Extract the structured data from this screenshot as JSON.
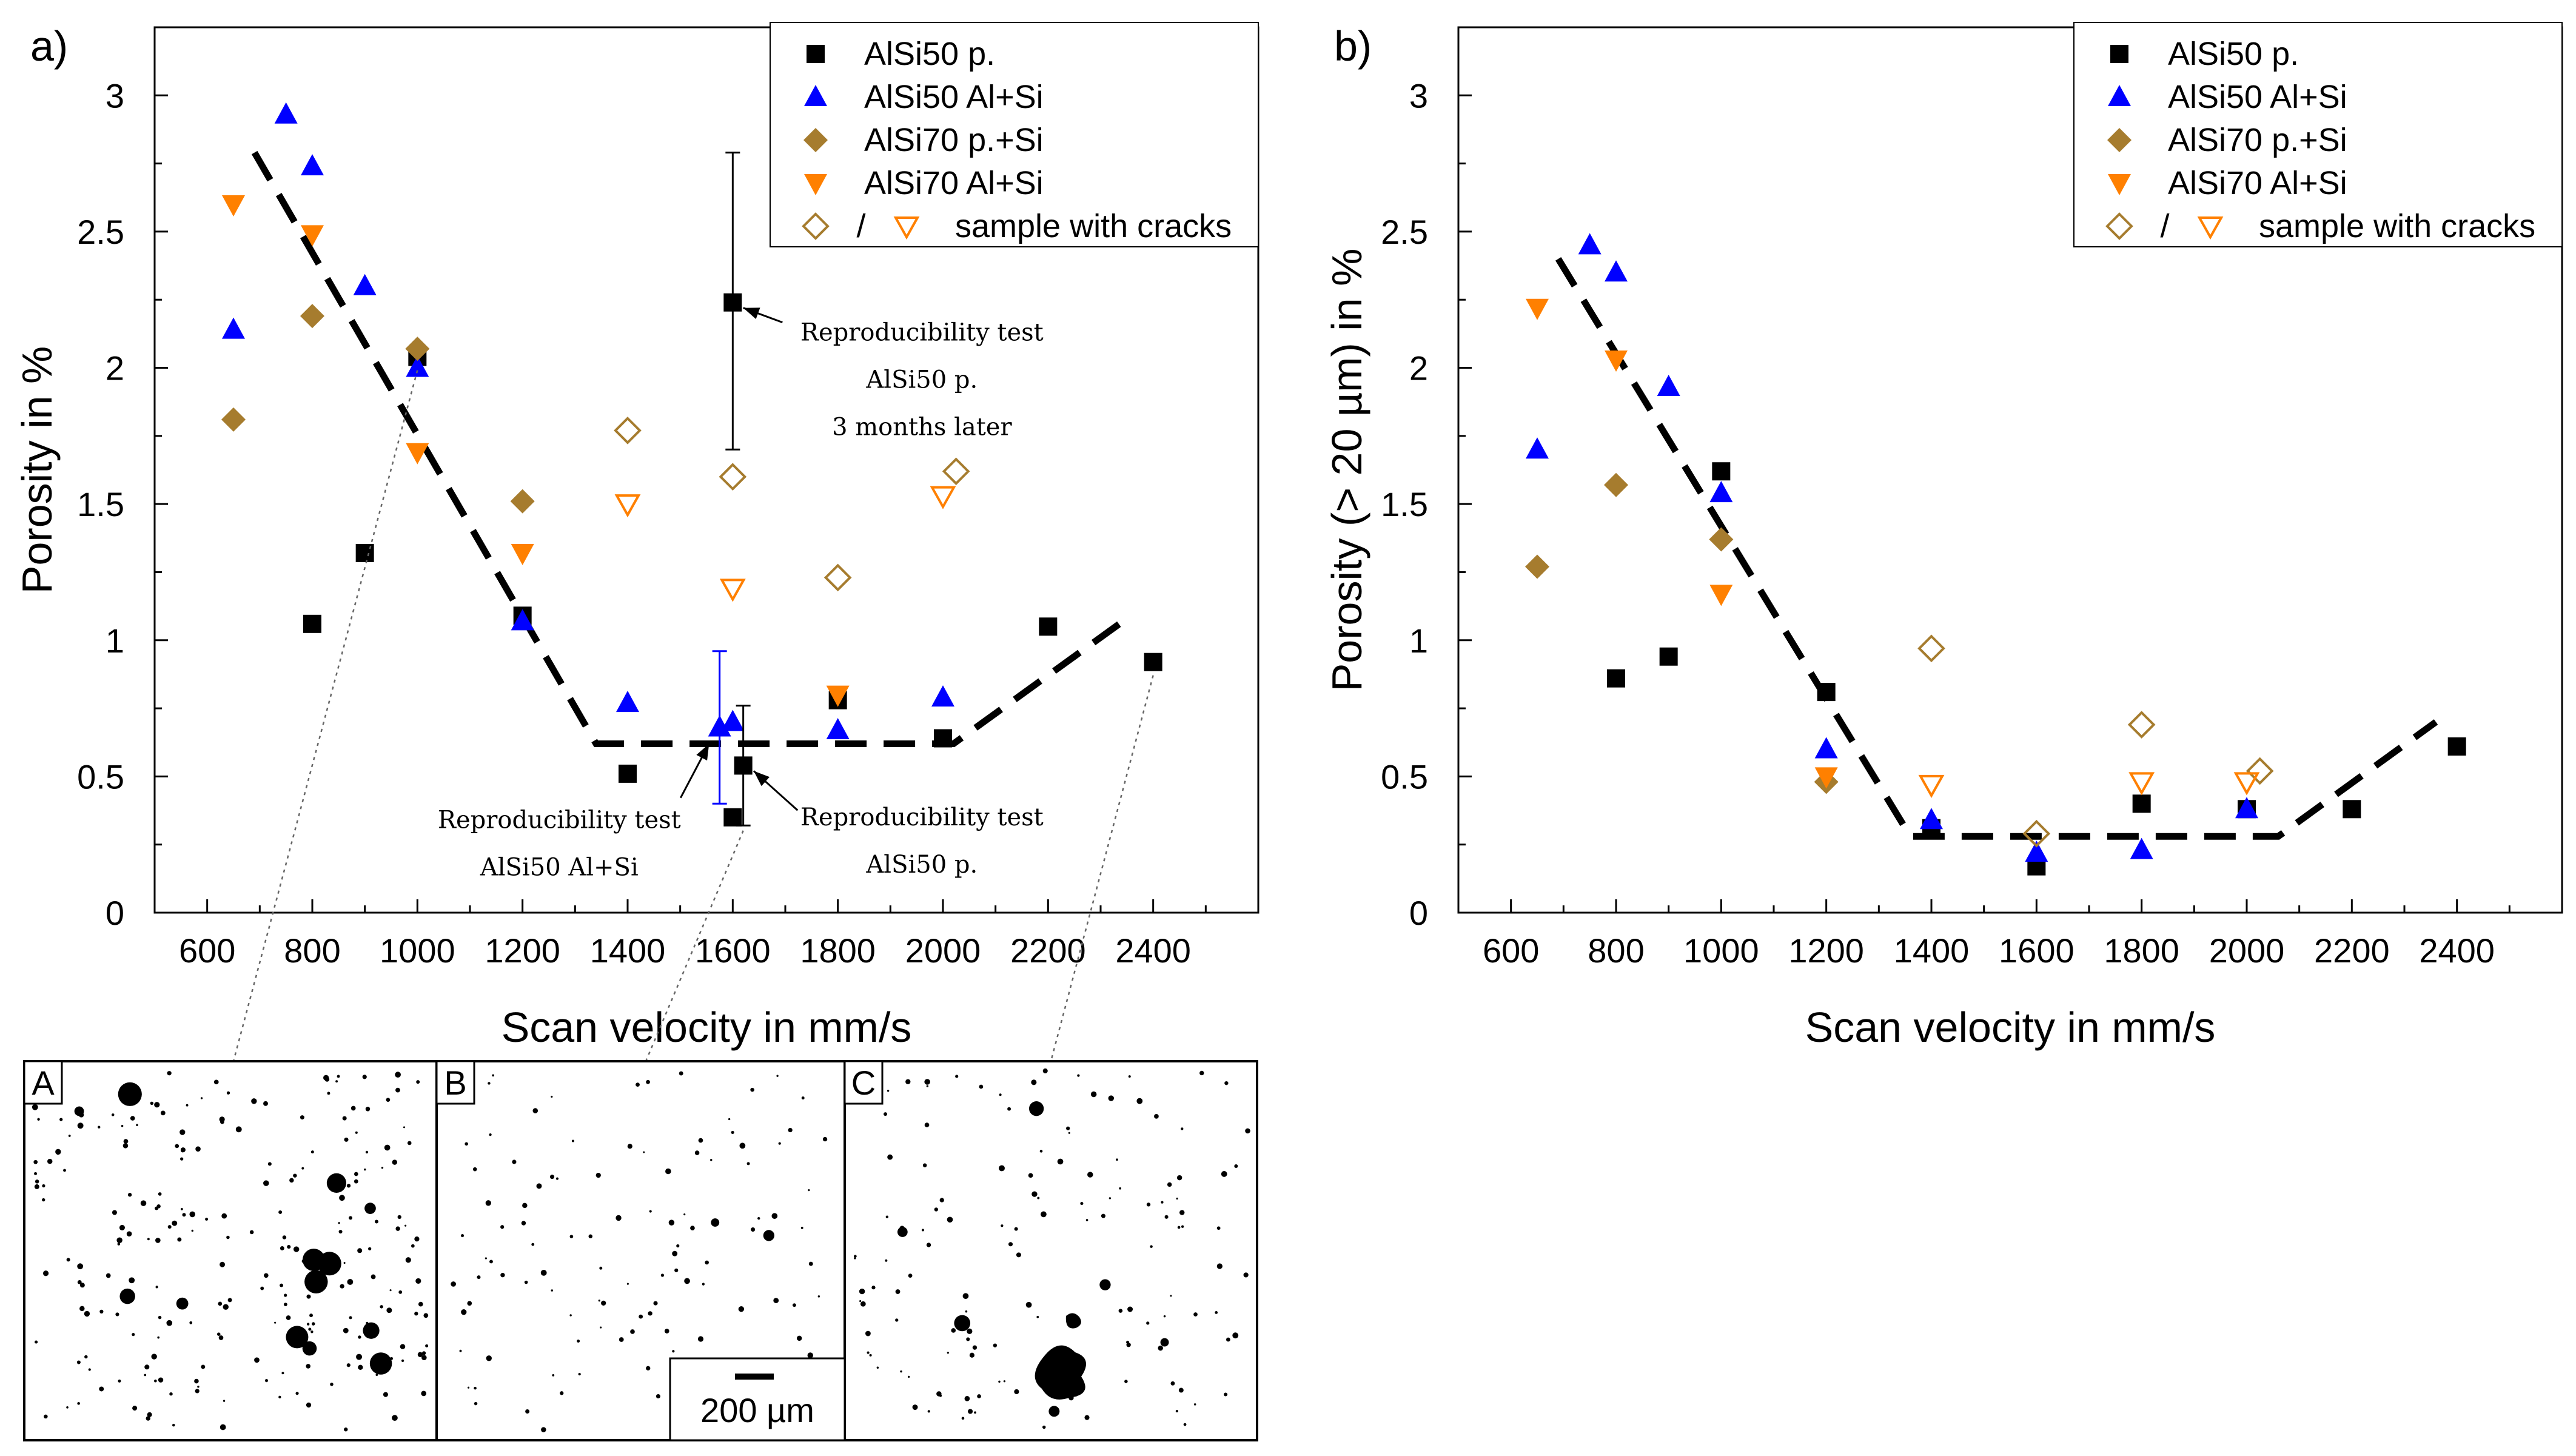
{
  "colors": {
    "p": "#000000",
    "alsi50": "#0000ff",
    "alsi70ps": "#a67c2e",
    "alsi70al": "#ff8000"
  },
  "legend": [
    {
      "key": "p",
      "label": "AlSi50 p."
    },
    {
      "key": "alsi50",
      "label": "AlSi50 Al+Si"
    },
    {
      "key": "alsi70ps",
      "label": "AlSi70 p.+Si"
    },
    {
      "key": "alsi70al",
      "label": "AlSi70 Al+Si"
    },
    {
      "key": "cracks",
      "label": "sample with cracks",
      "separator": "/"
    }
  ],
  "chart_data": [
    {
      "panel": "a)",
      "type": "scatter",
      "xlabel": "Scan velocity in mm/s",
      "ylabel": "Porosity in %",
      "xlim": [
        500,
        2600
      ],
      "ylim": [
        0,
        3.25
      ],
      "xticks": [
        600,
        800,
        1000,
        1200,
        1400,
        1600,
        1800,
        2000,
        2200,
        2400
      ],
      "yticks": [
        0,
        0.5,
        1,
        1.5,
        2,
        2.5,
        3
      ],
      "series": [
        {
          "name": "AlSi50 p.",
          "key": "p",
          "marker": "square",
          "points": [
            [
              800,
              1.06
            ],
            [
              900,
              1.32
            ],
            [
              1000,
              2.04
            ],
            [
              1200,
              1.09
            ],
            [
              1400,
              0.51
            ],
            [
              1600,
              0.35
            ],
            [
              1620,
              0.54
            ],
            [
              1800,
              0.78
            ],
            [
              2000,
              0.64
            ],
            [
              2200,
              1.05
            ],
            [
              2400,
              0.92
            ],
            [
              1600,
              2.24
            ]
          ]
        },
        {
          "name": "AlSi50 Al+Si",
          "key": "alsi50",
          "marker": "triangle-up",
          "points": [
            [
              650,
              2.14
            ],
            [
              750,
              2.93
            ],
            [
              800,
              2.74
            ],
            [
              900,
              2.3
            ],
            [
              1000,
              2.0
            ],
            [
              1200,
              1.07
            ],
            [
              1400,
              0.77
            ],
            [
              1575,
              0.68
            ],
            [
              1600,
              0.7
            ],
            [
              1800,
              0.67
            ],
            [
              2000,
              0.79
            ]
          ]
        },
        {
          "name": "AlSi70 p.+Si",
          "key": "alsi70ps",
          "marker": "diamond",
          "points": [
            [
              650,
              1.81
            ],
            [
              800,
              2.19
            ],
            [
              1000,
              2.07
            ],
            [
              1200,
              1.51
            ]
          ]
        },
        {
          "name": "AlSi70 Al+Si",
          "key": "alsi70al",
          "marker": "triangle-down",
          "points": [
            [
              650,
              2.6
            ],
            [
              800,
              2.49
            ],
            [
              1000,
              1.69
            ],
            [
              1200,
              1.32
            ],
            [
              1800,
              0.8
            ]
          ]
        },
        {
          "name": "AlSi70 p.+Si with cracks",
          "key": "alsi70ps",
          "marker": "diamond-open",
          "points": [
            [
              1400,
              1.77
            ],
            [
              1600,
              1.6
            ],
            [
              1800,
              1.23
            ],
            [
              2025,
              1.62
            ]
          ]
        },
        {
          "name": "AlSi70 Al+Si with cracks",
          "key": "alsi70al",
          "marker": "triangle-down-open",
          "points": [
            [
              1400,
              1.5
            ],
            [
              1600,
              1.19
            ],
            [
              2000,
              1.53
            ]
          ]
        }
      ],
      "trend": [
        [
          690,
          2.79
        ],
        [
          1340,
          0.62
        ],
        [
          2020,
          0.62
        ],
        [
          2350,
          1.08
        ]
      ],
      "errorbars": [
        {
          "key": "p",
          "x": 1600,
          "y": 2.24,
          "low": 1.7,
          "high": 2.79
        },
        {
          "key": "alsi50",
          "x": 1575,
          "y": 0.68,
          "low": 0.4,
          "high": 0.96
        },
        {
          "key": "p",
          "x": 1620,
          "y": 0.54,
          "low": 0.32,
          "high": 0.76
        }
      ],
      "annotations": [
        {
          "lines": [
            "Reproducibility test",
            "AlSi50 p.",
            "3 months later"
          ],
          "tx": 1960,
          "ty": 2.1,
          "ax": 1620,
          "ay": 2.22
        },
        {
          "lines": [
            "Reproducibility test",
            "AlSi50 Al+Si"
          ],
          "tx": 1270,
          "ty": 0.31,
          "ax": 1555,
          "ay": 0.62
        },
        {
          "lines": [
            "Reproducibility test",
            "AlSi50 p."
          ],
          "tx": 1960,
          "ty": 0.32,
          "ax": 1640,
          "ay": 0.52
        }
      ]
    },
    {
      "panel": "b)",
      "type": "scatter",
      "xlabel": "Scan velocity in mm/s",
      "ylabel": "Porosity (> 20 µm) in %",
      "xlim": [
        500,
        2600
      ],
      "ylim": [
        0,
        3.25
      ],
      "xticks": [
        600,
        800,
        1000,
        1200,
        1400,
        1600,
        1800,
        2000,
        2200,
        2400
      ],
      "yticks": [
        0,
        0.5,
        1,
        1.5,
        2,
        2.5,
        3
      ],
      "series": [
        {
          "name": "AlSi50 p.",
          "key": "p",
          "marker": "square",
          "points": [
            [
              800,
              0.86
            ],
            [
              900,
              0.94
            ],
            [
              1000,
              1.62
            ],
            [
              1200,
              0.81
            ],
            [
              1400,
              0.31
            ],
            [
              1600,
              0.17
            ],
            [
              1800,
              0.4
            ],
            [
              2000,
              0.38
            ],
            [
              2200,
              0.38
            ],
            [
              2400,
              0.61
            ]
          ]
        },
        {
          "name": "AlSi50 Al+Si",
          "key": "alsi50",
          "marker": "triangle-up",
          "points": [
            [
              650,
              1.7
            ],
            [
              750,
              2.45
            ],
            [
              800,
              2.35
            ],
            [
              900,
              1.93
            ],
            [
              1000,
              1.54
            ],
            [
              1200,
              0.6
            ],
            [
              1400,
              0.34
            ],
            [
              1600,
              0.22
            ],
            [
              1800,
              0.23
            ],
            [
              2000,
              0.38
            ]
          ]
        },
        {
          "name": "AlSi70 p.+Si",
          "key": "alsi70ps",
          "marker": "diamond",
          "points": [
            [
              650,
              1.27
            ],
            [
              800,
              1.57
            ],
            [
              1000,
              1.37
            ],
            [
              1200,
              0.48
            ]
          ]
        },
        {
          "name": "AlSi70 Al+Si",
          "key": "alsi70al",
          "marker": "triangle-down",
          "points": [
            [
              650,
              2.22
            ],
            [
              800,
              2.03
            ],
            [
              1000,
              1.17
            ],
            [
              1200,
              0.5
            ]
          ]
        },
        {
          "name": "AlSi70 p.+Si with cracks",
          "key": "alsi70ps",
          "marker": "diamond-open",
          "points": [
            [
              1400,
              0.97
            ],
            [
              1600,
              0.29
            ],
            [
              1800,
              0.69
            ],
            [
              2025,
              0.52
            ]
          ]
        },
        {
          "name": "AlSi70 Al+Si with cracks",
          "key": "alsi70al",
          "marker": "triangle-down-open",
          "points": [
            [
              1400,
              0.47
            ],
            [
              1800,
              0.48
            ],
            [
              2000,
              0.48
            ]
          ]
        }
      ],
      "trend": [
        [
          690,
          2.4
        ],
        [
          1360,
          0.28
        ],
        [
          2060,
          0.28
        ],
        [
          2360,
          0.7
        ]
      ],
      "errorbars": [],
      "annotations": []
    }
  ],
  "insets": [
    {
      "label": "A",
      "x": 1000,
      "y": 2.04
    },
    {
      "label": "B",
      "x": 1620,
      "y": 0.35
    },
    {
      "label": "C",
      "x": 2400,
      "y": 0.92
    }
  ],
  "scale_bar": "200 µm"
}
